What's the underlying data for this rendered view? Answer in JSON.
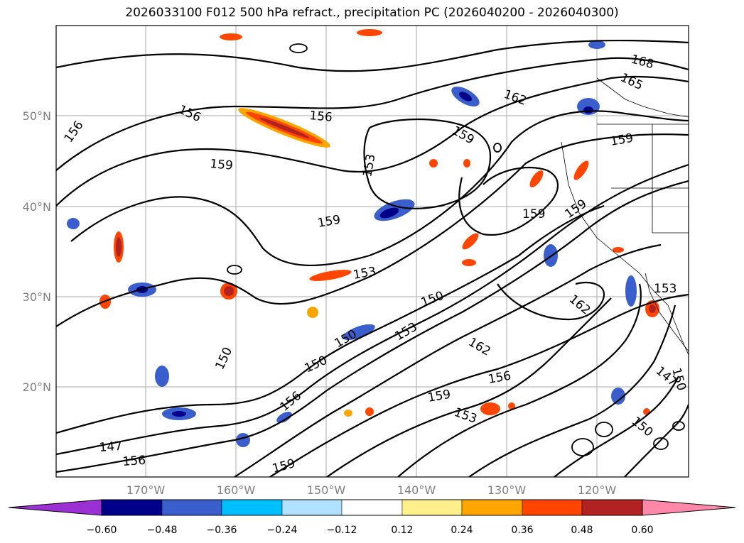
{
  "title": "2026033100 F012 500 hPa refract., precipitation PC (2026040200 - 2026040300)",
  "map": {
    "lat_labels": [
      "50°N",
      "40°N",
      "30°N",
      "20°N"
    ],
    "lon_labels": [
      "170°W",
      "160°W",
      "150°W",
      "140°W",
      "130°W",
      "120°W"
    ],
    "contour_labels": [
      "168",
      "165",
      "162",
      "156",
      "156",
      "156",
      "159",
      "159",
      "153",
      "159",
      "159",
      "159",
      "159",
      "153",
      "150",
      "153",
      "162",
      "150",
      "150",
      "150",
      "162",
      "153",
      "147",
      "150",
      "150",
      "156",
      "159",
      "153",
      "156",
      "147",
      "156",
      "159"
    ]
  },
  "colorbar": {
    "ticks": [
      "−0.60",
      "−0.48",
      "−0.36",
      "−0.24",
      "−0.12",
      "0.12",
      "0.24",
      "0.36",
      "0.48",
      "0.60"
    ],
    "colors": [
      "#9b30d4",
      "#00008b",
      "#3a5fcd",
      "#00bfff",
      "#b0e2ff",
      "#ffffff",
      "#fff08c",
      "#ffa500",
      "#ff4500",
      "#b22222",
      "#ff88aa"
    ]
  }
}
